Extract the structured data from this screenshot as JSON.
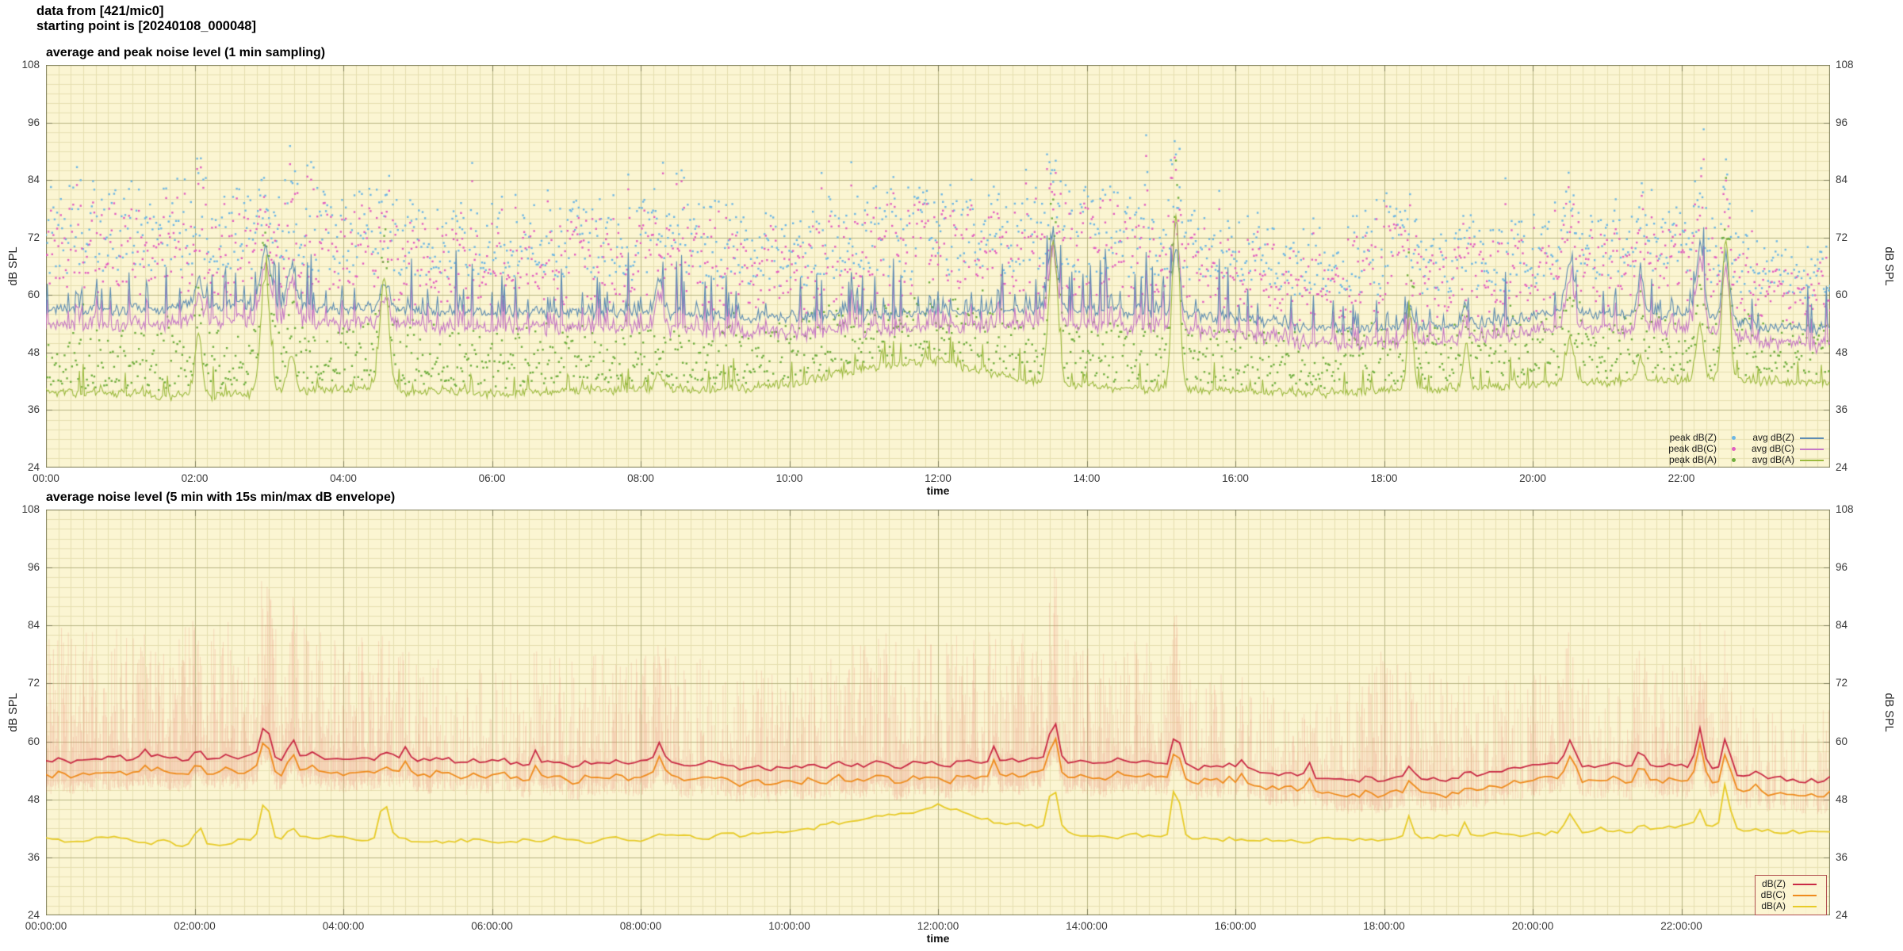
{
  "header": {
    "line1": "data from [421/mic0]",
    "line2": "starting point is [20240108_000048]"
  },
  "style": {
    "plot_bg": "#fbf5d2",
    "grid_minor": "#e6dfb0",
    "grid_major": "#b9b684",
    "border": "#7d7c58",
    "envelope": "rgba(233,118,106,0.22)",
    "legend_box_border": "#b25151"
  },
  "charts": [
    {
      "title": "average and peak noise level (1 min sampling)",
      "xlabel": "time",
      "ylabel_left": "dB SPL",
      "ylabel_right": "dB SPL",
      "yticks": [
        "24",
        "36",
        "48",
        "60",
        "72",
        "84",
        "96",
        "108"
      ],
      "xticks": [
        "00:00",
        "02:00",
        "04:00",
        "06:00",
        "08:00",
        "10:00",
        "12:00",
        "14:00",
        "16:00",
        "18:00",
        "20:00",
        "22:00"
      ],
      "legend_points": [
        {
          "label": "peak dB(Z)",
          "color": "#6cb6e4"
        },
        {
          "label": "peak dB(C)",
          "color": "#e25ec0"
        },
        {
          "label": "peak dB(A)",
          "color": "#6fae3e"
        }
      ],
      "legend_lines": [
        {
          "label": "avg dB(Z)",
          "color": "#5d8cb3"
        },
        {
          "label": "avg dB(C)",
          "color": "#c678c6"
        },
        {
          "label": "avg dB(A)",
          "color": "#9cba3f"
        }
      ]
    },
    {
      "title": "average noise level (5 min with 15s min/max dB envelope)",
      "xlabel": "time",
      "ylabel_left": "dB SPL",
      "ylabel_right": "dB SPL",
      "yticks": [
        "24",
        "36",
        "48",
        "60",
        "72",
        "84",
        "96",
        "108"
      ],
      "xticks": [
        "00:00:00",
        "02:00:00",
        "04:00:00",
        "06:00:00",
        "08:00:00",
        "10:00:00",
        "12:00:00",
        "14:00:00",
        "16:00:00",
        "18:00:00",
        "20:00:00",
        "22:00:00"
      ],
      "legend_lines": [
        {
          "label": "dB(Z)",
          "color": "#c92a45"
        },
        {
          "label": "dB(C)",
          "color": "#ef8c1e"
        },
        {
          "label": "dB(A)",
          "color": "#e7cb28"
        }
      ]
    }
  ],
  "chart_data": [
    {
      "type": "scatter",
      "subtype": "points+lines",
      "title": "average and peak noise level (1 min sampling)",
      "xlabel": "time",
      "ylabel": "dB SPL",
      "x_unit": "hours",
      "x_range": [
        0,
        24
      ],
      "ylim": [
        24,
        108
      ],
      "yticks": [
        24,
        36,
        48,
        60,
        72,
        84,
        96,
        108
      ],
      "xtick_hours": [
        0,
        2,
        4,
        6,
        8,
        10,
        12,
        14,
        16,
        18,
        20,
        22
      ],
      "sampling_interval": "1 min",
      "grid": true,
      "legend_position": "bottom-right",
      "seed": 1337,
      "activity_by_hour": [
        0.85,
        0.8,
        0.85,
        0.85,
        0.8,
        0.55,
        0.45,
        0.6,
        0.65,
        0.6,
        0.45,
        0.8,
        0.85,
        0.8,
        0.8,
        0.7,
        0.4,
        0.35,
        0.85,
        0.5,
        0.45,
        0.4,
        0.6,
        0.25,
        0.25
      ],
      "series": [
        {
          "name": "peak dB(Z)",
          "style": "points",
          "color": "#6cb6e4",
          "typical_range_db": [
            60,
            86
          ]
        },
        {
          "name": "peak dB(C)",
          "style": "points",
          "color": "#e25ec0",
          "typical_range_db": [
            58,
            84
          ]
        },
        {
          "name": "peak dB(A)",
          "style": "points",
          "color": "#6fae3e",
          "typical_range_db": [
            40,
            56
          ]
        },
        {
          "name": "avg dB(Z)",
          "style": "line",
          "color": "#5d8cb3",
          "jitter_db": 2,
          "burst_db": 13,
          "level_by_hour": [
            57,
            57,
            57.5,
            58,
            57.5,
            57,
            56.5,
            56.5,
            56.5,
            56,
            55.5,
            56,
            56.5,
            57,
            57,
            56.5,
            55,
            53.5,
            53,
            53.5,
            55.5,
            56,
            56.5,
            53.5,
            53
          ]
        },
        {
          "name": "avg dB(C)",
          "style": "line",
          "color": "#c678c6",
          "offset_from_dbz": -2.3
        },
        {
          "name": "avg dB(A)",
          "style": "line",
          "color": "#9cba3f",
          "jitter_db": 1.6,
          "burst_db": 8,
          "level_by_hour": [
            40,
            39.5,
            39,
            40,
            40.5,
            40,
            39.5,
            40,
            40.5,
            40.5,
            41.5,
            44.5,
            46.5,
            42.5,
            41,
            40.5,
            40,
            39.5,
            40,
            40.5,
            41.5,
            42,
            42.5,
            42,
            41.5
          ]
        }
      ],
      "events": [
        {
          "hour": 2.05,
          "width": 0.05,
          "z": 6,
          "a": 12
        },
        {
          "hour": 2.95,
          "width": 0.06,
          "z": 12,
          "a": 24
        },
        {
          "hour": 3.3,
          "width": 0.05,
          "z": 8,
          "a": 7
        },
        {
          "hour": 4.55,
          "width": 0.06,
          "z": 5,
          "a": 23
        },
        {
          "hour": 8.25,
          "width": 0.05,
          "z": 7,
          "a": 3
        },
        {
          "hour": 13.55,
          "width": 0.06,
          "z": 15,
          "a": 29
        },
        {
          "hour": 15.2,
          "width": 0.05,
          "z": 13,
          "c": 22,
          "a": 36
        },
        {
          "hour": 18.35,
          "width": 0.04,
          "z": 4,
          "a": 16
        },
        {
          "hour": 19.1,
          "width": 0.04,
          "z": 3,
          "a": 9
        },
        {
          "hour": 20.5,
          "width": 0.06,
          "z": 11,
          "a": 9
        },
        {
          "hour": 21.45,
          "width": 0.04,
          "z": 8,
          "a": 5
        },
        {
          "hour": 22.25,
          "width": 0.05,
          "z": 15,
          "a": 11
        },
        {
          "hour": 22.6,
          "width": 0.05,
          "z": 14,
          "a": 29
        }
      ],
      "outliers": [
        {
          "series": "peak dB(Z)",
          "hour": 15.25,
          "db": 90.5
        },
        {
          "series": "peak dB(Z)",
          "hour": 2.9,
          "db": 84
        }
      ]
    },
    {
      "type": "line",
      "subtype": "lines+minmax-envelope",
      "title": "average noise level (5 min with 15s min/max dB envelope)",
      "xlabel": "time",
      "ylabel": "dB SPL",
      "x_unit": "hours",
      "x_range": [
        0,
        24
      ],
      "ylim": [
        24,
        108
      ],
      "yticks": [
        24,
        36,
        48,
        60,
        72,
        84,
        96,
        108
      ],
      "xtick_hours": [
        0,
        2,
        4,
        6,
        8,
        10,
        12,
        14,
        16,
        18,
        20,
        22
      ],
      "sampling_interval": "5 min",
      "envelope_interval": "15 s",
      "grid": true,
      "legend_position": "bottom-right",
      "seed": 4242,
      "series": [
        {
          "name": "dB(Z)",
          "style": "line",
          "color": "#c92a45",
          "level_by_hour": [
            56.2,
            56.2,
            56.6,
            57,
            56.6,
            56.2,
            55.6,
            55.6,
            55.6,
            55.2,
            54.8,
            55.2,
            55.6,
            56,
            56,
            55.6,
            54.2,
            52.9,
            52.4,
            52.9,
            54.9,
            55.2,
            55.6,
            52.9,
            52.4
          ]
        },
        {
          "name": "dB(C)",
          "style": "line",
          "color": "#ef8c1e",
          "offset_from_dbz": -2.6
        },
        {
          "name": "dB(A)",
          "style": "line",
          "color": "#e7cb28",
          "level_by_hour": [
            39.7,
            39.2,
            38.7,
            39.7,
            40.2,
            39.7,
            39.2,
            39.7,
            40.2,
            40.2,
            41.2,
            44.2,
            46.2,
            42.2,
            40.7,
            40.2,
            39.7,
            39.2,
            39.7,
            40.2,
            41.2,
            41.7,
            42.2,
            41.7,
            41.2
          ]
        },
        {
          "name": "envelope",
          "style": "fill",
          "color": "rgba(233,118,106,0.22)",
          "max_extra_db": 31
        }
      ]
    }
  ]
}
